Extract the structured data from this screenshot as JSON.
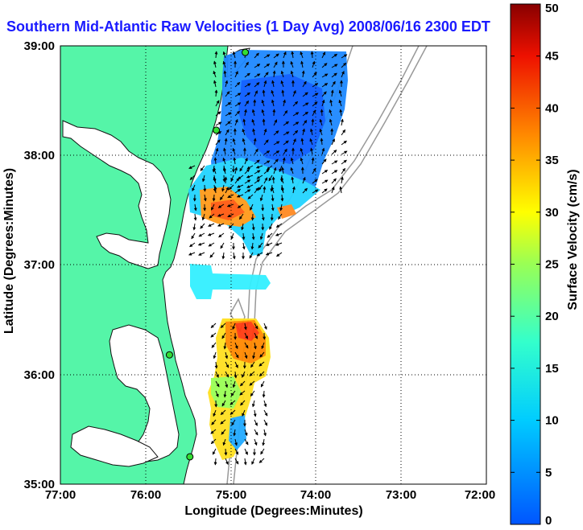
{
  "title": "Southern Mid-Atlantic Raw Velocities (1 Day Avg) 2008/06/16 2300 EDT",
  "chart_data": {
    "type": "heatmap",
    "title": "Southern Mid-Atlantic Raw Velocities (1 Day Avg) 2008/06/16 2300 EDT",
    "xlabel": "Longitude (Degrees:Minutes)",
    "ylabel": "Latitude (Degrees:Minutes)",
    "xlim": [
      -77,
      -72
    ],
    "ylim": [
      35,
      39
    ],
    "x_ticks": [
      "77:00",
      "76:00",
      "75:00",
      "74:00",
      "73:00",
      "72:00"
    ],
    "y_ticks": [
      "35:00",
      "36:00",
      "37:00",
      "38:00",
      "39:00"
    ],
    "grid": true,
    "colorbar": {
      "label": "Surface Velocity (cm/s)",
      "range": [
        0,
        50
      ],
      "ticks": [
        "0",
        "5",
        "10",
        "15",
        "20",
        "25",
        "30",
        "35",
        "40",
        "45",
        "50"
      ]
    },
    "stations": [
      {
        "lon": -74.83,
        "lat": 38.94
      },
      {
        "lon": -75.17,
        "lat": 38.23
      },
      {
        "lon": -75.72,
        "lat": 36.18
      },
      {
        "lon": -75.48,
        "lat": 35.25
      }
    ]
  },
  "colors": {
    "title": "#1a1aff",
    "land": "#55f5a8",
    "station": "#33dd33"
  }
}
